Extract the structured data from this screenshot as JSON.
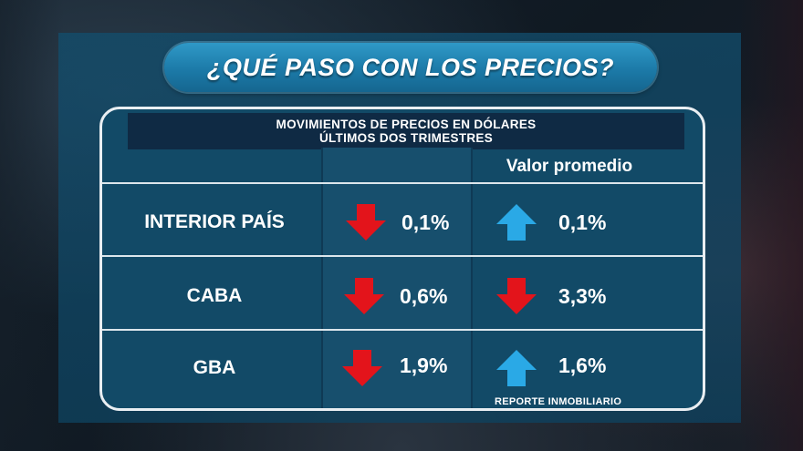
{
  "title": "¿QUÉ PASO CON LOS PRECIOS?",
  "subtitle": {
    "line1": "MOVIMIENTOS DE PRECIOS EN DÓLARES",
    "line2": "ÚLTIMOS DOS TRIMESTRES"
  },
  "columns": {
    "average_header": "Valor promedio"
  },
  "rows": [
    {
      "label": "INTERIOR PAÍS",
      "change": "0,1%",
      "change_direction": "down",
      "average": "0,1%",
      "average_direction": "up"
    },
    {
      "label": "CABA",
      "change": "0,6%",
      "change_direction": "down",
      "average": "3,3%",
      "average_direction": "down"
    },
    {
      "label": "GBA",
      "change": "1,9%",
      "change_direction": "down",
      "average": "1,6%",
      "average_direction": "up"
    }
  ],
  "footer": "REPORTE INMOBILIARIO",
  "colors": {
    "down_arrow": "#e3141b",
    "up_arrow": "#2aa9e6",
    "title_pill": "#2389b8",
    "card": "#124a67"
  },
  "icons": {
    "down": "arrow-down-icon",
    "up": "arrow-up-icon"
  }
}
